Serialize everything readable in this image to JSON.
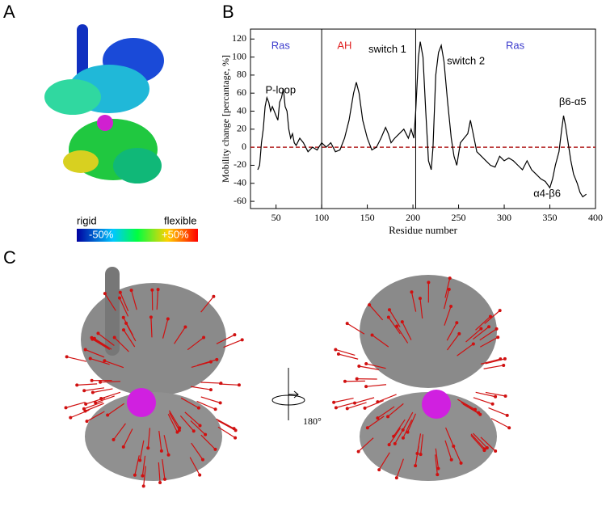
{
  "panels": {
    "labels": [
      "A",
      "B",
      "C"
    ],
    "colorbar": {
      "left": "rigid",
      "right": "flexible",
      "min": "-50%",
      "max": "+50%"
    },
    "rotation": "180°"
  },
  "chart_data": {
    "type": "line",
    "x_label": "Residue number",
    "y_label": "Mobility change [percantage, %]",
    "xlim": [
      22,
      400
    ],
    "ylim": [
      -68,
      131
    ],
    "xticks": [
      50,
      100,
      150,
      200,
      250,
      300,
      350,
      400
    ],
    "yticks": [
      -60,
      -40,
      -20,
      0,
      20,
      40,
      60,
      80,
      100,
      120
    ],
    "color": "#000000",
    "hline": {
      "value": 0,
      "color": "#b22222"
    },
    "vlines": [
      100,
      203
    ],
    "annotations": [
      {
        "text": "Ras",
        "x": 55,
        "y": 112,
        "color": "#3a3acc"
      },
      {
        "text": "AH",
        "x": 125,
        "y": 112,
        "color": "#e02020"
      },
      {
        "text": "switch 1",
        "x": 172,
        "y": 108,
        "color": "#000000"
      },
      {
        "text": "Ras",
        "x": 312,
        "y": 112,
        "color": "#3a3acc"
      },
      {
        "text": "switch 2",
        "x": 258,
        "y": 95,
        "color": "#000000"
      },
      {
        "text": "P-loop",
        "x": 55,
        "y": 63,
        "color": "#000000"
      },
      {
        "text": "β6-α5",
        "x": 375,
        "y": 50,
        "color": "#000000"
      },
      {
        "text": "α4-β6",
        "x": 347,
        "y": -52,
        "color": "#000000"
      }
    ],
    "x": [
      30,
      32,
      34,
      36,
      38,
      40,
      42,
      44,
      46,
      48,
      50,
      52,
      54,
      56,
      58,
      60,
      62,
      64,
      66,
      68,
      70,
      72,
      76,
      80,
      85,
      90,
      95,
      100,
      105,
      110,
      115,
      120,
      125,
      130,
      135,
      138,
      141,
      145,
      150,
      155,
      160,
      165,
      170,
      173,
      176,
      180,
      185,
      190,
      195,
      198,
      201,
      203,
      206,
      208,
      211,
      214,
      217,
      220,
      222,
      225,
      228,
      231,
      234,
      238,
      242,
      245,
      248,
      252,
      256,
      260,
      263,
      266,
      270,
      275,
      280,
      285,
      290,
      295,
      300,
      305,
      310,
      315,
      320,
      325,
      330,
      335,
      340,
      345,
      350,
      353,
      356,
      360,
      363,
      365,
      367,
      370,
      373,
      376,
      380,
      383,
      386,
      390
    ],
    "values": [
      -25,
      -20,
      5,
      20,
      45,
      55,
      50,
      40,
      45,
      40,
      35,
      30,
      50,
      55,
      65,
      45,
      40,
      20,
      10,
      15,
      5,
      2,
      10,
      5,
      -5,
      0,
      -3,
      5,
      0,
      5,
      -5,
      -3,
      10,
      30,
      60,
      72,
      60,
      30,
      10,
      -3,
      0,
      10,
      22,
      15,
      5,
      10,
      15,
      20,
      10,
      20,
      10,
      40,
      100,
      117,
      100,
      40,
      -15,
      -25,
      0,
      80,
      105,
      113,
      95,
      50,
      10,
      -10,
      -20,
      5,
      10,
      15,
      30,
      15,
      -5,
      -10,
      -15,
      -20,
      -22,
      -10,
      -15,
      -12,
      -15,
      -20,
      -25,
      -15,
      -25,
      -30,
      -35,
      -38,
      -45,
      -35,
      -20,
      -5,
      20,
      35,
      25,
      5,
      -15,
      -30,
      -40,
      -50,
      -55,
      -52
    ]
  }
}
